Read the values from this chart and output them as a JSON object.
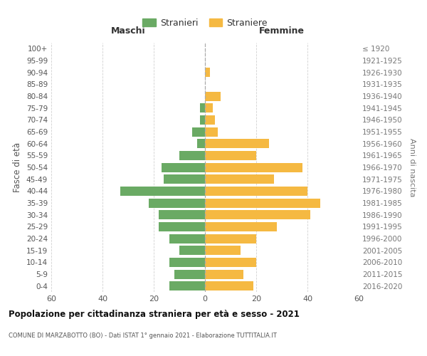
{
  "age_groups": [
    "0-4",
    "5-9",
    "10-14",
    "15-19",
    "20-24",
    "25-29",
    "30-34",
    "35-39",
    "40-44",
    "45-49",
    "50-54",
    "55-59",
    "60-64",
    "65-69",
    "70-74",
    "75-79",
    "80-84",
    "85-89",
    "90-94",
    "95-99",
    "100+"
  ],
  "birth_years": [
    "2016-2020",
    "2011-2015",
    "2006-2010",
    "2001-2005",
    "1996-2000",
    "1991-1995",
    "1986-1990",
    "1981-1985",
    "1976-1980",
    "1971-1975",
    "1966-1970",
    "1961-1965",
    "1956-1960",
    "1951-1955",
    "1946-1950",
    "1941-1945",
    "1936-1940",
    "1931-1935",
    "1926-1930",
    "1921-1925",
    "≤ 1920"
  ],
  "maschi": [
    14,
    12,
    14,
    10,
    14,
    18,
    18,
    22,
    33,
    16,
    17,
    10,
    3,
    5,
    2,
    2,
    0,
    0,
    0,
    0,
    0
  ],
  "femmine": [
    19,
    15,
    20,
    14,
    20,
    28,
    41,
    45,
    40,
    27,
    38,
    20,
    25,
    5,
    4,
    3,
    6,
    0,
    2,
    0,
    0
  ],
  "maschi_color": "#6aaa64",
  "femmine_color": "#f5b942",
  "background_color": "#ffffff",
  "grid_color": "#cccccc",
  "title": "Popolazione per cittadinanza straniera per età e sesso - 2021",
  "subtitle": "COMUNE DI MARZABOTTO (BO) - Dati ISTAT 1° gennaio 2021 - Elaborazione TUTTITALIA.IT",
  "xlabel_left": "Maschi",
  "xlabel_right": "Femmine",
  "ylabel_left": "Fasce di età",
  "ylabel_right": "Anni di nascita",
  "legend_maschi": "Stranieri",
  "legend_femmine": "Straniere",
  "xlim": 60
}
